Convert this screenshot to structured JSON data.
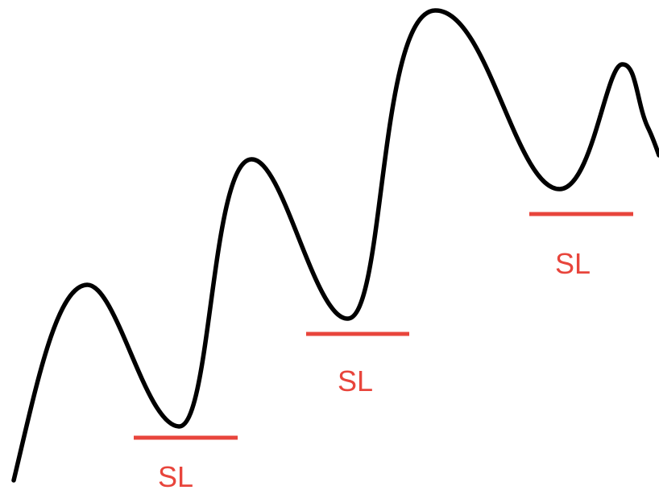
{
  "colors": {
    "background": "#ffffff",
    "price_line": "#000000",
    "stop_loss": "#e8453c"
  },
  "stop_losses": [
    {
      "label": "SL"
    },
    {
      "label": "SL"
    },
    {
      "label": "SL"
    }
  ]
}
